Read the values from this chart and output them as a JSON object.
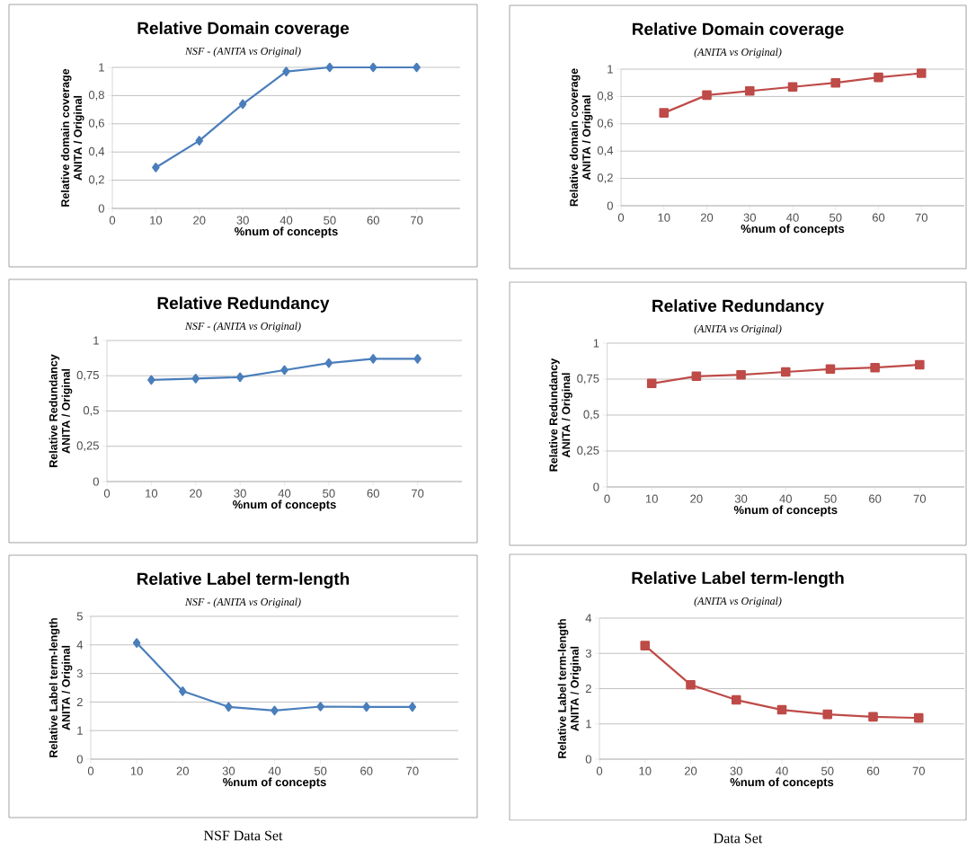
{
  "chart_data": [
    {
      "type": "line",
      "title": "Relative Domain coverage",
      "subtitle": "NSF - (ANITA vs Original)",
      "xlabel": "%num of concepts",
      "ylabel": "Relative domain coverage\nANITA / Original",
      "x": [
        10,
        20,
        30,
        40,
        50,
        60,
        70
      ],
      "values": [
        0.29,
        0.48,
        0.74,
        0.97,
        1.0,
        1.0,
        1.0
      ],
      "color": "#4a7ebb",
      "marker": "diamond",
      "xlim": [
        0,
        80
      ],
      "xticks": [
        0,
        10,
        20,
        30,
        40,
        50,
        60,
        70
      ],
      "ylim": [
        0,
        1
      ],
      "yticks": [
        0,
        {
          "value": 0.2,
          "label": "0,2"
        },
        {
          "value": 0.4,
          "label": "0,4"
        },
        {
          "value": 0.6,
          "label": "0,6"
        },
        {
          "value": 0.8,
          "label": "0,8"
        },
        1
      ],
      "grid": "y"
    },
    {
      "type": "line",
      "title": "Relative Domain coverage",
      "subtitle": "(ANITA vs Original)",
      "xlabel": "%num of concepts",
      "ylabel": "Relative domain coverage\nANITA / Original",
      "x": [
        10,
        20,
        30,
        40,
        50,
        60,
        70
      ],
      "values": [
        0.68,
        0.81,
        0.84,
        0.87,
        0.9,
        0.94,
        0.97
      ],
      "color": "#be4b48",
      "marker": "square",
      "xlim": [
        0,
        80
      ],
      "xticks": [
        0,
        10,
        20,
        30,
        40,
        50,
        60,
        70
      ],
      "ylim": [
        0,
        1
      ],
      "yticks": [
        0,
        {
          "value": 0.2,
          "label": "0,2"
        },
        {
          "value": 0.4,
          "label": "0,4"
        },
        {
          "value": 0.6,
          "label": "0,6"
        },
        {
          "value": 0.8,
          "label": "0,8"
        },
        1
      ],
      "grid": "y"
    },
    {
      "type": "line",
      "title": "Relative Redundancy",
      "subtitle": "NSF - (ANITA vs Original)",
      "xlabel": "%num of concepts",
      "ylabel": "Relative Redundancy\nANITA / Original",
      "x": [
        10,
        20,
        30,
        40,
        50,
        60,
        70
      ],
      "values": [
        0.72,
        0.73,
        0.74,
        0.79,
        0.84,
        0.87,
        0.87
      ],
      "color": "#4a7ebb",
      "marker": "diamond",
      "xlim": [
        0,
        80
      ],
      "xticks": [
        0,
        10,
        20,
        30,
        40,
        50,
        60,
        70
      ],
      "ylim": [
        0,
        1
      ],
      "yticks": [
        0,
        {
          "value": 0.25,
          "label": "0,25"
        },
        {
          "value": 0.5,
          "label": "0,5"
        },
        {
          "value": 0.75,
          "label": "0,75"
        },
        1
      ],
      "grid": "y"
    },
    {
      "type": "line",
      "title": "Relative Redundancy",
      "subtitle": "(ANITA vs Original)",
      "xlabel": "%num of concepts",
      "ylabel": "Relative Redundancy\nANITA / Original",
      "x": [
        10,
        20,
        30,
        40,
        50,
        60,
        70
      ],
      "values": [
        0.72,
        0.77,
        0.78,
        0.8,
        0.82,
        0.83,
        0.85
      ],
      "color": "#be4b48",
      "marker": "square",
      "xlim": [
        0,
        80
      ],
      "xticks": [
        0,
        10,
        20,
        30,
        40,
        50,
        60,
        70
      ],
      "ylim": [
        0,
        1
      ],
      "yticks": [
        0,
        {
          "value": 0.25,
          "label": "0,25"
        },
        {
          "value": 0.5,
          "label": "0,5"
        },
        {
          "value": 0.75,
          "label": "0,75"
        },
        1
      ],
      "grid": "y"
    },
    {
      "type": "line",
      "title": "Relative Label term-length",
      "subtitle": "NSF - (ANITA vs Original)",
      "xlabel": "%num of concepts",
      "ylabel": "Relative Label term-length\nANITA / Original",
      "x": [
        10,
        20,
        30,
        40,
        50,
        60,
        70
      ],
      "values": [
        4.07,
        2.38,
        1.83,
        1.7,
        1.84,
        1.83,
        1.83
      ],
      "color": "#4a7ebb",
      "marker": "diamond",
      "xlim": [
        0,
        80
      ],
      "xticks": [
        0,
        10,
        20,
        30,
        40,
        50,
        60,
        70
      ],
      "ylim": [
        0,
        5
      ],
      "yticks": [
        0,
        1,
        2,
        3,
        4,
        5
      ],
      "grid": "y",
      "annotations": [
        "NSF Data Set"
      ]
    },
    {
      "type": "line",
      "title": "Relative Label term-length",
      "subtitle": "(ANITA vs Original)",
      "xlabel": "%num of concepts",
      "ylabel": "Relative Label term-length\nANITA / Original",
      "x": [
        10,
        20,
        30,
        40,
        50,
        60,
        70
      ],
      "values": [
        3.22,
        2.11,
        1.68,
        1.4,
        1.27,
        1.2,
        1.17
      ],
      "color": "#be4b48",
      "marker": "square",
      "xlim": [
        0,
        80
      ],
      "xticks": [
        0,
        10,
        20,
        30,
        40,
        50,
        60,
        70
      ],
      "ylim": [
        0,
        4
      ],
      "yticks": [
        0,
        1,
        2,
        3,
        4
      ],
      "grid": "y",
      "annotations": [
        "Data Set"
      ]
    }
  ]
}
